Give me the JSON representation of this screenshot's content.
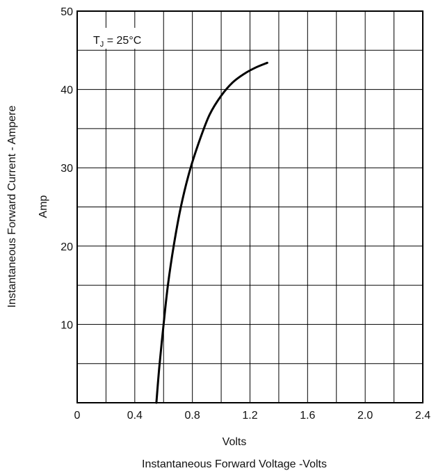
{
  "chart_data": {
    "type": "line",
    "title": "",
    "xlabel": "Volts",
    "xlabel_secondary": "Instantaneous Forward Voltage -Volts",
    "ylabel": "Instantaneous  Forward  Current - Ampere",
    "ylabel_secondary": "Amp",
    "xlim": [
      0,
      2.4
    ],
    "ylim": [
      0,
      50
    ],
    "x_ticks": [
      0,
      0.2,
      0.4,
      0.6,
      0.8,
      1.0,
      1.2,
      1.4,
      1.6,
      1.8,
      2.0,
      2.2,
      2.4
    ],
    "x_tick_labels": [
      "0",
      "",
      "0.4",
      "",
      "0.8",
      "",
      "1.2",
      "",
      "1.6",
      "",
      "2.0",
      "",
      "2.4"
    ],
    "y_ticks": [
      5,
      10,
      15,
      20,
      25,
      30,
      35,
      40,
      45,
      50
    ],
    "y_tick_labels": [
      "",
      "10",
      "",
      "20",
      "",
      "30",
      "",
      "40",
      "",
      "50"
    ],
    "grid": true,
    "annotation": {
      "main": "T",
      "subscript": "J",
      "rest": " = 25°C"
    },
    "series": [
      {
        "color": "#000000",
        "x": [
          0.55,
          0.57,
          0.6,
          0.63,
          0.67,
          0.72,
          0.78,
          0.85,
          0.92,
          1.0,
          1.08,
          1.16,
          1.24,
          1.32
        ],
        "y": [
          0.0,
          4.5,
          10.0,
          15.0,
          20.0,
          25.0,
          29.5,
          33.5,
          36.8,
          39.2,
          40.9,
          42.0,
          42.8,
          43.4
        ]
      }
    ]
  }
}
